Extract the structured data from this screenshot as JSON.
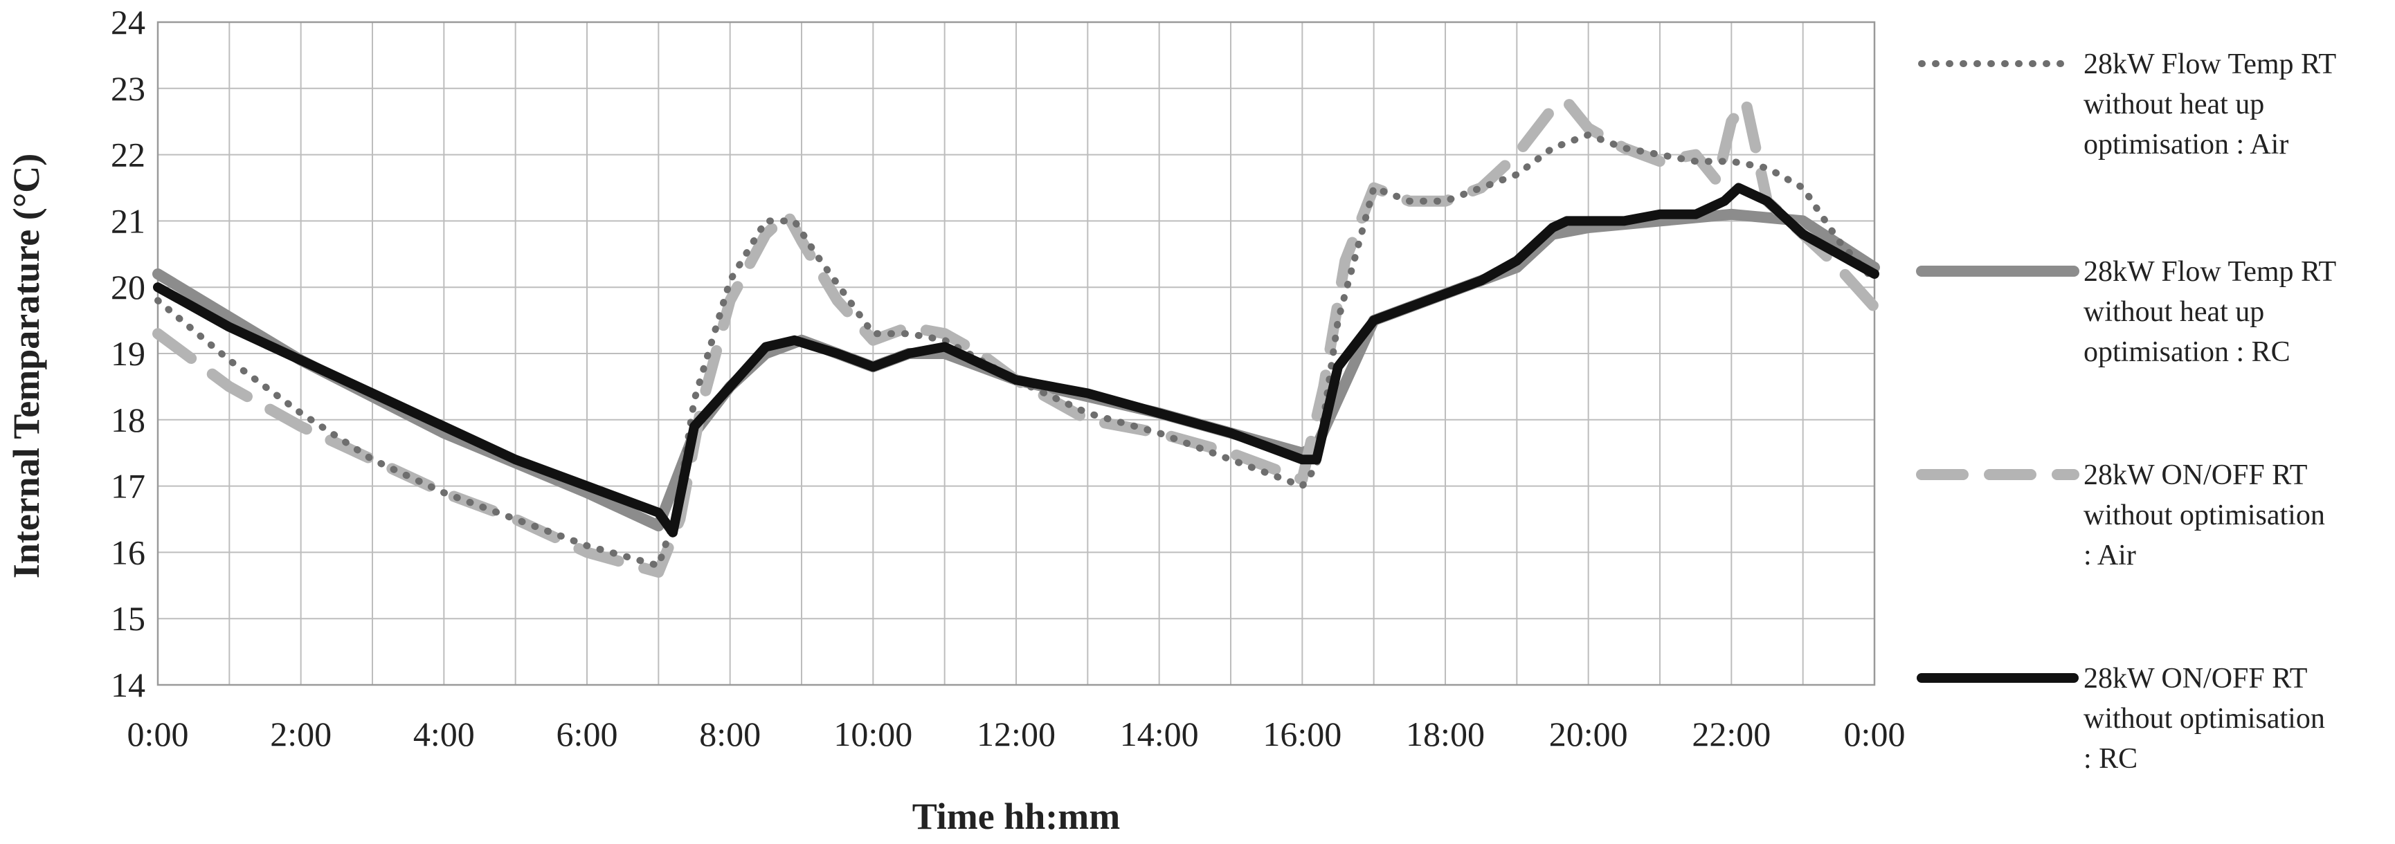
{
  "chart_data": {
    "type": "line",
    "xlabel": "Time hh:mm",
    "ylabel": "Internal Temparature (°C)",
    "ylim": [
      14,
      24
    ],
    "xlim": [
      0,
      24
    ],
    "y_ticks": [
      "14",
      "15",
      "16",
      "17",
      "18",
      "19",
      "20",
      "21",
      "22",
      "23",
      "24"
    ],
    "x_ticks": [
      "0:00",
      "2:00",
      "4:00",
      "6:00",
      "8:00",
      "10:00",
      "12:00",
      "14:00",
      "16:00",
      "18:00",
      "20:00",
      "22:00",
      "0:00"
    ],
    "grid": true,
    "legend_position": "right",
    "series": [
      {
        "name_lines": [
          "28kW Flow Temp RT",
          "without heat up",
          "optimisation : Air"
        ],
        "style": "dotted",
        "color": "#6e6e6e",
        "x": [
          0,
          1,
          2,
          3,
          4,
          5,
          6,
          7,
          7.25,
          7.5,
          8,
          8.5,
          8.9,
          9.2,
          10,
          10.5,
          11,
          12,
          13,
          14,
          15,
          16,
          16.2,
          16.5,
          17,
          17.5,
          18,
          19,
          19.5,
          20,
          20.5,
          21,
          21.5,
          22,
          22.5,
          23,
          23.5,
          24
        ],
        "y": [
          19.8,
          18.9,
          18.1,
          17.4,
          16.9,
          16.5,
          16.1,
          15.8,
          16.6,
          18.3,
          20.1,
          21.0,
          21.0,
          20.5,
          19.3,
          19.3,
          19.2,
          18.6,
          18.1,
          17.8,
          17.4,
          17.0,
          17.3,
          19.5,
          21.5,
          21.3,
          21.3,
          21.7,
          22.1,
          22.3,
          22.1,
          22.0,
          21.9,
          21.9,
          21.8,
          21.5,
          20.7,
          20.1
        ]
      },
      {
        "name_lines": [
          "28kW Flow Temp RT",
          "without heat up",
          "optimisation : RC"
        ],
        "style": "solid",
        "color": "#8c8c8c",
        "x": [
          0,
          2,
          4,
          6,
          7,
          7.5,
          8,
          8.5,
          9,
          10,
          10.5,
          11,
          12,
          14,
          16,
          16.2,
          17,
          18,
          19,
          19.5,
          20,
          21,
          22,
          23,
          24
        ],
        "y": [
          20.2,
          18.9,
          17.8,
          16.9,
          16.4,
          17.8,
          18.5,
          19.0,
          19.2,
          18.8,
          19.0,
          19.0,
          18.6,
          18.1,
          17.5,
          17.6,
          19.5,
          19.9,
          20.3,
          20.8,
          20.9,
          21.0,
          21.1,
          21.0,
          20.3
        ]
      },
      {
        "name_lines": [
          "28kW ON/OFF RT",
          "without optimisation",
          ": Air"
        ],
        "style": "dashed",
        "color": "#b4b4b4",
        "x": [
          0,
          1,
          2,
          3,
          4,
          5,
          6,
          7,
          7.3,
          7.6,
          8,
          8.5,
          8.8,
          9,
          9.5,
          10,
          10.5,
          11,
          11.5,
          12,
          13,
          14,
          15,
          16,
          16.3,
          16.6,
          17,
          17.5,
          18,
          18.5,
          19,
          19.5,
          19.7,
          20,
          20.5,
          21,
          21.5,
          21.8,
          22,
          22.2,
          22.5,
          23,
          23.5,
          24
        ],
        "y": [
          19.3,
          18.5,
          17.9,
          17.4,
          16.9,
          16.5,
          16.0,
          15.7,
          16.5,
          18.2,
          19.8,
          20.8,
          21.1,
          20.7,
          19.8,
          19.2,
          19.4,
          19.3,
          19.0,
          18.6,
          18.0,
          17.8,
          17.5,
          17.1,
          18.5,
          20.4,
          21.5,
          21.3,
          21.3,
          21.5,
          22.0,
          22.7,
          22.8,
          22.4,
          22.1,
          21.9,
          22.0,
          21.6,
          22.5,
          22.8,
          21.3,
          20.8,
          20.3,
          19.7
        ]
      },
      {
        "name_lines": [
          "28kW ON/OFF RT",
          "without optimisation",
          ": RC"
        ],
        "style": "solid-thick",
        "color": "#111111",
        "x": [
          0,
          1,
          2,
          3,
          4,
          5,
          6,
          7,
          7.2,
          7.5,
          8,
          8.5,
          8.9,
          9.2,
          9.5,
          10,
          10.5,
          11,
          12,
          13,
          14,
          15,
          15.5,
          16,
          16.2,
          16.5,
          17,
          17.5,
          18,
          18.5,
          19,
          19.5,
          19.7,
          20,
          20.5,
          21,
          21.5,
          21.9,
          22.1,
          22.5,
          23,
          23.5,
          24
        ],
        "y": [
          20.0,
          19.4,
          18.9,
          18.4,
          17.9,
          17.4,
          17.0,
          16.6,
          16.3,
          17.9,
          18.5,
          19.1,
          19.2,
          19.1,
          19.0,
          18.8,
          19.0,
          19.1,
          18.6,
          18.4,
          18.1,
          17.8,
          17.6,
          17.4,
          17.4,
          18.8,
          19.5,
          19.7,
          19.9,
          20.1,
          20.4,
          20.9,
          21.0,
          21.0,
          21.0,
          21.1,
          21.1,
          21.3,
          21.5,
          21.3,
          20.8,
          20.5,
          20.2
        ]
      }
    ]
  }
}
